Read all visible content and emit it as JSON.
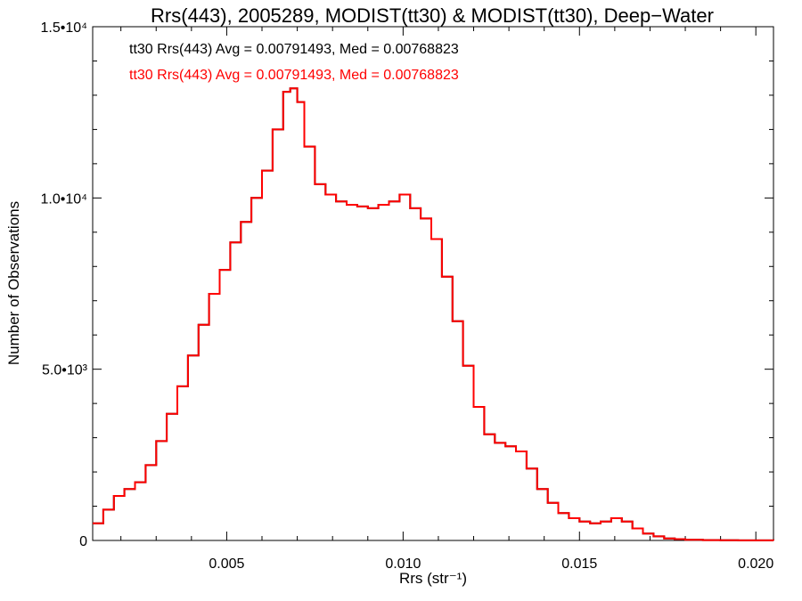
{
  "chart_data": {
    "type": "line",
    "title": "Rrs(443), 2005289, MODIST(tt30) & MODIST(tt30), Deep−Water",
    "xlabel": "Rrs (str⁻¹)",
    "ylabel": "Number of Observations",
    "xlim": [
      0.0012,
      0.0205
    ],
    "ylim": [
      0,
      15000
    ],
    "x_ticks": [
      {
        "value": 0.005,
        "label": "0.005"
      },
      {
        "value": 0.01,
        "label": "0.010"
      },
      {
        "value": 0.015,
        "label": "0.015"
      },
      {
        "value": 0.02,
        "label": "0.020"
      }
    ],
    "y_ticks": [
      {
        "value": 0,
        "label": "0"
      },
      {
        "value": 5000,
        "label": "5.0•10³"
      },
      {
        "value": 10000,
        "label": "1.0•10⁴"
      },
      {
        "value": 15000,
        "label": "1.5•10⁴"
      }
    ],
    "grid": false,
    "legend_position": "top-left",
    "series": [
      {
        "name": "tt30 Rrs(443) Avg = 0.00791493, Med = 0.00768823",
        "color": "#000000",
        "x": [
          0.0012,
          0.0015,
          0.0018,
          0.0021,
          0.0024,
          0.0027,
          0.003,
          0.0033,
          0.0036,
          0.0039,
          0.0042,
          0.0045,
          0.0048,
          0.0051,
          0.0054,
          0.0057,
          0.006,
          0.0063,
          0.0066,
          0.0068,
          0.007,
          0.0072,
          0.0075,
          0.0078,
          0.0081,
          0.0084,
          0.0087,
          0.009,
          0.0093,
          0.0096,
          0.0099,
          0.0102,
          0.0105,
          0.0108,
          0.0111,
          0.0114,
          0.0117,
          0.012,
          0.0123,
          0.0126,
          0.0129,
          0.0132,
          0.0135,
          0.0138,
          0.0141,
          0.0144,
          0.0147,
          0.015,
          0.0153,
          0.0156,
          0.0159,
          0.0162,
          0.0165,
          0.0168,
          0.0171,
          0.0174,
          0.0177,
          0.018,
          0.0185,
          0.019,
          0.0195,
          0.02,
          0.0205
        ],
        "values": [
          500,
          900,
          1300,
          1500,
          1700,
          2200,
          2900,
          3700,
          4500,
          5400,
          6300,
          7200,
          7900,
          8700,
          9300,
          10000,
          10800,
          12000,
          13100,
          13200,
          12800,
          11500,
          10400,
          10100,
          9900,
          9800,
          9750,
          9700,
          9800,
          9900,
          10100,
          9700,
          9400,
          8800,
          7700,
          6400,
          5100,
          3900,
          3100,
          2850,
          2750,
          2600,
          2100,
          1500,
          1100,
          800,
          650,
          550,
          500,
          550,
          650,
          550,
          350,
          200,
          120,
          60,
          40,
          20,
          10,
          5,
          3,
          2,
          1
        ]
      },
      {
        "name": "tt30 Rrs(443) Avg = 0.00791493, Med = 0.00768823",
        "color": "#ff0000",
        "x": [
          0.0012,
          0.0015,
          0.0018,
          0.0021,
          0.0024,
          0.0027,
          0.003,
          0.0033,
          0.0036,
          0.0039,
          0.0042,
          0.0045,
          0.0048,
          0.0051,
          0.0054,
          0.0057,
          0.006,
          0.0063,
          0.0066,
          0.0068,
          0.007,
          0.0072,
          0.0075,
          0.0078,
          0.0081,
          0.0084,
          0.0087,
          0.009,
          0.0093,
          0.0096,
          0.0099,
          0.0102,
          0.0105,
          0.0108,
          0.0111,
          0.0114,
          0.0117,
          0.012,
          0.0123,
          0.0126,
          0.0129,
          0.0132,
          0.0135,
          0.0138,
          0.0141,
          0.0144,
          0.0147,
          0.015,
          0.0153,
          0.0156,
          0.0159,
          0.0162,
          0.0165,
          0.0168,
          0.0171,
          0.0174,
          0.0177,
          0.018,
          0.0185,
          0.019,
          0.0195,
          0.02,
          0.0205
        ],
        "values": [
          500,
          900,
          1300,
          1500,
          1700,
          2200,
          2900,
          3700,
          4500,
          5400,
          6300,
          7200,
          7900,
          8700,
          9300,
          10000,
          10800,
          12000,
          13100,
          13200,
          12800,
          11500,
          10400,
          10100,
          9900,
          9800,
          9750,
          9700,
          9800,
          9900,
          10100,
          9700,
          9400,
          8800,
          7700,
          6400,
          5100,
          3900,
          3100,
          2850,
          2750,
          2600,
          2100,
          1500,
          1100,
          800,
          650,
          550,
          500,
          550,
          650,
          550,
          350,
          200,
          120,
          60,
          40,
          20,
          10,
          5,
          3,
          2,
          1
        ]
      }
    ]
  }
}
